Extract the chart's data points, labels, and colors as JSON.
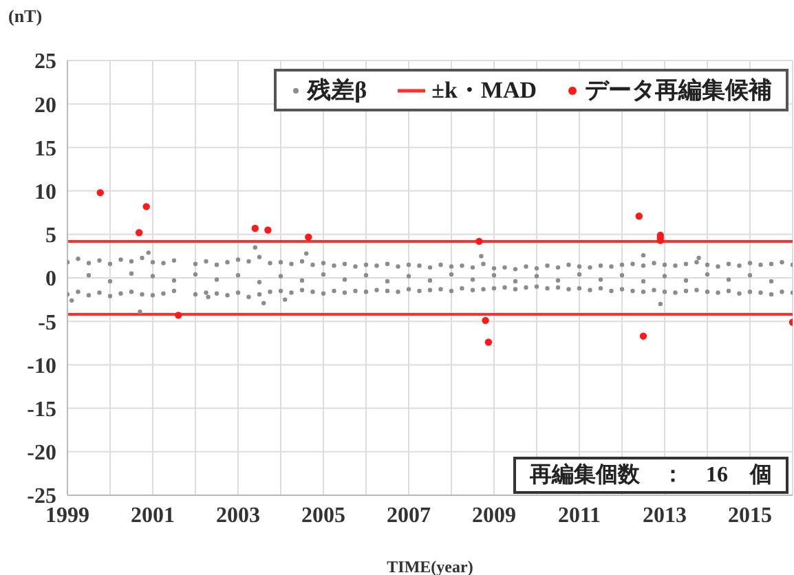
{
  "chart_data": {
    "type": "scatter",
    "xlabel": "TIME(year)",
    "ylabel": "(nT)",
    "xlim": [
      1999,
      2016
    ],
    "xticks": [
      1999,
      {
        "value": 2000,
        "label": null
      },
      2001,
      {
        "value": 2002,
        "label": null
      },
      2003,
      {
        "value": 2004,
        "label": null
      },
      2005,
      {
        "value": 2006,
        "label": null
      },
      2007,
      {
        "value": 2008,
        "label": null
      },
      2009,
      {
        "value": 2010,
        "label": null
      },
      2011,
      {
        "value": 2012,
        "label": null
      },
      2013,
      {
        "value": 2014,
        "label": null
      },
      2015,
      {
        "value": 2016,
        "label": null
      }
    ],
    "ylim": [
      -25,
      25
    ],
    "yticks": [
      -25,
      -20,
      -15,
      -10,
      -5,
      0,
      5,
      10,
      15,
      20,
      25
    ],
    "grid": true,
    "legend": "top right",
    "marker": "circle",
    "annotations": [
      "再編集個数　：　16　個"
    ],
    "series": [
      {
        "name": "残差β",
        "color": "#8c8c8c",
        "x": [
          1999,
          1999,
          1999.1,
          1999.25,
          1999.25,
          1999.5,
          1999.5,
          1999.5,
          1999.75,
          1999.75,
          2000,
          2000,
          2000,
          2000.25,
          2000.25,
          2000.5,
          2000.5,
          2000.5,
          2000.7,
          2000.75,
          2000.75,
          2000.9,
          2001,
          2001,
          2001,
          2001.25,
          2001.25,
          2001.5,
          2001.5,
          2001.5,
          2002,
          2002,
          2002,
          2002.25,
          2002.25,
          2002.3,
          2002.5,
          2002.5,
          2002.5,
          2002.75,
          2002.75,
          2003,
          2003,
          2003,
          2003.25,
          2003.25,
          2003.4,
          2003.5,
          2003.5,
          2003.5,
          2003.6,
          2003.75,
          2003.75,
          2004,
          2004,
          2004,
          2004.1,
          2004.25,
          2004.25,
          2004.5,
          2004.5,
          2004.5,
          2004.6,
          2004.75,
          2004.75,
          2005,
          2005,
          2005,
          2005.25,
          2005.25,
          2005.5,
          2005.5,
          2005.5,
          2005.75,
          2005.75,
          2006,
          2006,
          2006,
          2006.25,
          2006.25,
          2006.5,
          2006.5,
          2006.5,
          2006.75,
          2006.75,
          2007,
          2007,
          2007,
          2007.25,
          2007.25,
          2007.5,
          2007.5,
          2007.5,
          2007.75,
          2007.75,
          2008,
          2008,
          2008,
          2008.25,
          2008.25,
          2008.5,
          2008.5,
          2008.5,
          2008.7,
          2008.75,
          2008.75,
          2009,
          2009,
          2009,
          2009.25,
          2009.25,
          2009.5,
          2009.5,
          2009.5,
          2009.75,
          2009.75,
          2010,
          2010,
          2010,
          2010.25,
          2010.25,
          2010.5,
          2010.5,
          2010.5,
          2010.75,
          2010.75,
          2011,
          2011,
          2011,
          2011.25,
          2011.25,
          2011.5,
          2011.5,
          2011.5,
          2011.75,
          2011.75,
          2012,
          2012,
          2012,
          2012.25,
          2012.25,
          2012.5,
          2012.5,
          2012.5,
          2012.5,
          2012.75,
          2012.75,
          2012.9,
          2013,
          2013,
          2013,
          2013.25,
          2013.25,
          2013.5,
          2013.5,
          2013.5,
          2013.75,
          2013.75,
          2013.8,
          2014,
          2014,
          2014,
          2014.25,
          2014.25,
          2014.5,
          2014.5,
          2014.5,
          2014.75,
          2014.75,
          2015,
          2015,
          2015,
          2015.25,
          2015.25,
          2015.5,
          2015.5,
          2015.5,
          2015.75,
          2015.75,
          2016,
          2016
        ],
        "values": [
          1.8,
          -1.9,
          -2.6,
          2.2,
          -1.6,
          1.7,
          -2.0,
          0.3,
          2.0,
          -1.7,
          1.6,
          -2.1,
          -0.4,
          2.1,
          -1.8,
          1.9,
          -1.6,
          0.5,
          -3.9,
          2.3,
          -1.9,
          2.9,
          1.8,
          -2.0,
          0.2,
          1.7,
          -1.8,
          2.0,
          -1.5,
          -0.3,
          1.6,
          -1.9,
          0.4,
          1.9,
          -1.7,
          -2.2,
          1.5,
          -1.8,
          -0.2,
          1.8,
          -2.0,
          2.1,
          -1.7,
          0.3,
          1.9,
          -2.2,
          3.5,
          2.4,
          -1.9,
          -0.5,
          -2.9,
          1.7,
          -1.6,
          1.8,
          -1.5,
          0.2,
          -2.5,
          1.6,
          -1.7,
          1.9,
          -1.4,
          -0.3,
          2.8,
          1.5,
          -1.6,
          1.7,
          -1.8,
          0.4,
          1.4,
          -1.5,
          1.6,
          -1.7,
          -0.2,
          1.3,
          -1.5,
          1.5,
          -1.6,
          0.3,
          1.4,
          -1.4,
          1.6,
          -1.5,
          -0.4,
          1.3,
          -1.6,
          1.5,
          -1.3,
          0.2,
          1.4,
          -1.5,
          1.2,
          -1.4,
          -0.3,
          1.5,
          -1.3,
          1.3,
          -1.5,
          0.4,
          1.4,
          -1.2,
          1.2,
          -1.4,
          -0.2,
          2.5,
          1.6,
          -1.3,
          1.1,
          -1.2,
          0.3,
          1.2,
          -1.1,
          1.0,
          -1.3,
          -0.4,
          1.3,
          -1.1,
          1.1,
          -1.0,
          0.2,
          1.4,
          -1.2,
          1.2,
          -1.1,
          -0.3,
          1.5,
          -1.3,
          1.3,
          -1.2,
          0.4,
          1.2,
          -1.4,
          1.4,
          -1.2,
          -0.2,
          1.3,
          -1.5,
          1.5,
          -1.3,
          0.3,
          1.6,
          -1.5,
          1.4,
          -1.6,
          -0.4,
          2.6,
          1.7,
          -1.4,
          -3.0,
          1.5,
          -1.6,
          0.2,
          1.4,
          -1.7,
          1.6,
          -1.5,
          -0.3,
          1.8,
          -1.4,
          2.3,
          1.5,
          -1.6,
          0.4,
          1.3,
          -1.7,
          1.6,
          -1.5,
          -0.2,
          1.4,
          -1.8,
          1.7,
          -1.6,
          0.3,
          1.5,
          -1.7,
          1.6,
          -1.9,
          -0.4,
          1.8,
          -1.6,
          1.5,
          -1.7
        ]
      },
      {
        "name": "±k・MAD",
        "color": "#ff3030",
        "type": "line",
        "marker": "none",
        "x": [
          1999,
          2016
        ],
        "values": [
          4.2,
          4.2
        ]
      },
      {
        "color": "#ff3030",
        "type": "line",
        "marker": "none",
        "x": [
          1999,
          2016
        ],
        "values": [
          -4.2,
          -4.2
        ]
      },
      {
        "name": "データ再編集候補",
        "color": "#ff1a1a",
        "x": [
          1999.77,
          2000.68,
          2000.85,
          2001.6,
          2003.4,
          2003.7,
          2004.65,
          2008.65,
          2008.8,
          2008.87,
          2012.4,
          2012.5,
          2012.9,
          2012.9,
          2012.9,
          2016
        ],
        "values": [
          9.8,
          5.2,
          8.2,
          -4.3,
          5.7,
          5.5,
          4.7,
          4.2,
          -4.9,
          -7.4,
          7.1,
          -6.7,
          4.9,
          4.6,
          4.3,
          -5.1
        ]
      }
    ]
  }
}
